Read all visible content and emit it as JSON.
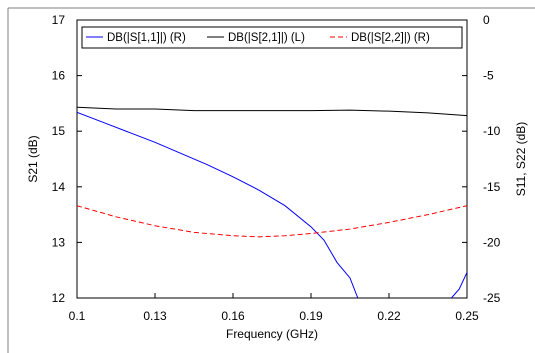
{
  "chart_data": {
    "type": "line",
    "xlabel": "Frequency (GHz)",
    "ylabel_left": "S21 (dB)",
    "ylabel_right": "S11, S22 (dB)",
    "xlim": [
      0.1,
      0.25
    ],
    "ylim_left": [
      12,
      17
    ],
    "ylim_right": [
      -25,
      0
    ],
    "x_ticks": [
      0.1,
      0.13,
      0.16,
      0.19,
      0.22,
      0.25
    ],
    "x_tick_labels": [
      "0.1",
      "0.13",
      "0.16",
      "0.19",
      "0.22",
      "0.25"
    ],
    "y_left_ticks": [
      12,
      13,
      14,
      15,
      16,
      17
    ],
    "y_left_tick_labels": [
      "12",
      "13",
      "14",
      "15",
      "16",
      "17"
    ],
    "y_right_ticks": [
      -25,
      -20,
      -15,
      -10,
      -5,
      0
    ],
    "y_right_tick_labels": [
      "-25",
      "-20",
      "-15",
      "-10",
      "-5",
      "0"
    ],
    "grid": false,
    "legend_position": "top",
    "series": [
      {
        "name": "DB(|S[1,1]|) (R)",
        "axis": "right",
        "color": "#0000ff",
        "dash": "solid",
        "points": [
          [
            0.1,
            -8.3
          ],
          [
            0.11,
            -9.2
          ],
          [
            0.12,
            -10.1
          ],
          [
            0.13,
            -11.0
          ],
          [
            0.14,
            -12.0
          ],
          [
            0.15,
            -13.0
          ],
          [
            0.16,
            -14.1
          ],
          [
            0.17,
            -15.3
          ],
          [
            0.18,
            -16.7
          ],
          [
            0.19,
            -18.6
          ],
          [
            0.195,
            -19.8
          ],
          [
            0.2,
            -21.8
          ],
          [
            0.205,
            -23.2
          ],
          [
            0.208,
            -25.0
          ]
        ]
      },
      {
        "name": "DB(|S[1,1]|) (R)",
        "axis": "right",
        "color": "#0000ff",
        "dash": "solid",
        "points": [
          [
            0.244,
            -25.0
          ],
          [
            0.247,
            -24.2
          ],
          [
            0.25,
            -22.7
          ]
        ]
      },
      {
        "name": "DB(|S[2,1]|) (L)",
        "axis": "left",
        "color": "#000000",
        "dash": "solid",
        "points": [
          [
            0.1,
            15.43
          ],
          [
            0.115,
            15.4
          ],
          [
            0.13,
            15.4
          ],
          [
            0.145,
            15.37
          ],
          [
            0.16,
            15.37
          ],
          [
            0.175,
            15.37
          ],
          [
            0.19,
            15.37
          ],
          [
            0.205,
            15.38
          ],
          [
            0.22,
            15.36
          ],
          [
            0.235,
            15.33
          ],
          [
            0.25,
            15.28
          ]
        ]
      },
      {
        "name": "DB(|S[2,2]|) (R)",
        "axis": "right",
        "color": "#ff0000",
        "dash": "dashed",
        "points": [
          [
            0.1,
            -16.7
          ],
          [
            0.115,
            -17.7
          ],
          [
            0.13,
            -18.5
          ],
          [
            0.145,
            -19.1
          ],
          [
            0.16,
            -19.4
          ],
          [
            0.17,
            -19.5
          ],
          [
            0.18,
            -19.4
          ],
          [
            0.19,
            -19.2
          ],
          [
            0.205,
            -18.8
          ],
          [
            0.22,
            -18.2
          ],
          [
            0.235,
            -17.5
          ],
          [
            0.25,
            -16.7
          ]
        ]
      }
    ],
    "legend": [
      {
        "label": "DB(|S[1,1]|) (R)",
        "color": "#0000ff",
        "dash": "solid"
      },
      {
        "label": "DB(|S[2,1]|) (L)",
        "color": "#000000",
        "dash": "solid"
      },
      {
        "label": "DB(|S[2,2]|) (R)",
        "color": "#ff0000",
        "dash": "dashed"
      }
    ]
  }
}
